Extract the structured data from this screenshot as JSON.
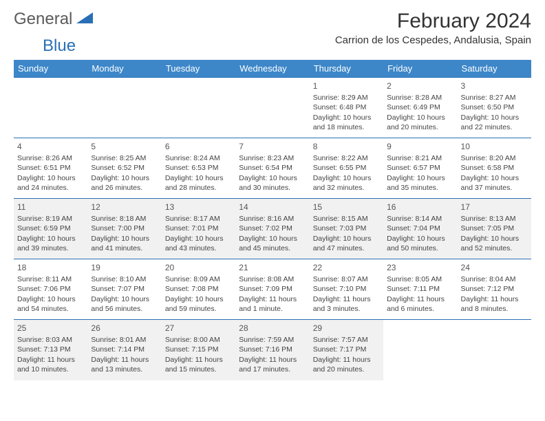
{
  "logo": {
    "text1": "General",
    "text2": "Blue"
  },
  "title": "February 2024",
  "location": "Carrion de los Cespedes, Andalusia, Spain",
  "colors": {
    "header_bg": "#3d87c9",
    "header_text": "#ffffff",
    "row_border": "#2a6fb5",
    "alt_row_bg": "#f1f1f1",
    "logo_blue": "#2a6fb5",
    "logo_gray": "#5a5a5a"
  },
  "day_headers": [
    "Sunday",
    "Monday",
    "Tuesday",
    "Wednesday",
    "Thursday",
    "Friday",
    "Saturday"
  ],
  "weeks": [
    {
      "alt": false,
      "cells": [
        null,
        null,
        null,
        null,
        {
          "num": "1",
          "sunrise": "8:29 AM",
          "sunset": "6:48 PM",
          "daylight": "10 hours and 18 minutes."
        },
        {
          "num": "2",
          "sunrise": "8:28 AM",
          "sunset": "6:49 PM",
          "daylight": "10 hours and 20 minutes."
        },
        {
          "num": "3",
          "sunrise": "8:27 AM",
          "sunset": "6:50 PM",
          "daylight": "10 hours and 22 minutes."
        }
      ]
    },
    {
      "alt": false,
      "cells": [
        {
          "num": "4",
          "sunrise": "8:26 AM",
          "sunset": "6:51 PM",
          "daylight": "10 hours and 24 minutes."
        },
        {
          "num": "5",
          "sunrise": "8:25 AM",
          "sunset": "6:52 PM",
          "daylight": "10 hours and 26 minutes."
        },
        {
          "num": "6",
          "sunrise": "8:24 AM",
          "sunset": "6:53 PM",
          "daylight": "10 hours and 28 minutes."
        },
        {
          "num": "7",
          "sunrise": "8:23 AM",
          "sunset": "6:54 PM",
          "daylight": "10 hours and 30 minutes."
        },
        {
          "num": "8",
          "sunrise": "8:22 AM",
          "sunset": "6:55 PM",
          "daylight": "10 hours and 32 minutes."
        },
        {
          "num": "9",
          "sunrise": "8:21 AM",
          "sunset": "6:57 PM",
          "daylight": "10 hours and 35 minutes."
        },
        {
          "num": "10",
          "sunrise": "8:20 AM",
          "sunset": "6:58 PM",
          "daylight": "10 hours and 37 minutes."
        }
      ]
    },
    {
      "alt": true,
      "cells": [
        {
          "num": "11",
          "sunrise": "8:19 AM",
          "sunset": "6:59 PM",
          "daylight": "10 hours and 39 minutes."
        },
        {
          "num": "12",
          "sunrise": "8:18 AM",
          "sunset": "7:00 PM",
          "daylight": "10 hours and 41 minutes."
        },
        {
          "num": "13",
          "sunrise": "8:17 AM",
          "sunset": "7:01 PM",
          "daylight": "10 hours and 43 minutes."
        },
        {
          "num": "14",
          "sunrise": "8:16 AM",
          "sunset": "7:02 PM",
          "daylight": "10 hours and 45 minutes."
        },
        {
          "num": "15",
          "sunrise": "8:15 AM",
          "sunset": "7:03 PM",
          "daylight": "10 hours and 47 minutes."
        },
        {
          "num": "16",
          "sunrise": "8:14 AM",
          "sunset": "7:04 PM",
          "daylight": "10 hours and 50 minutes."
        },
        {
          "num": "17",
          "sunrise": "8:13 AM",
          "sunset": "7:05 PM",
          "daylight": "10 hours and 52 minutes."
        }
      ]
    },
    {
      "alt": false,
      "cells": [
        {
          "num": "18",
          "sunrise": "8:11 AM",
          "sunset": "7:06 PM",
          "daylight": "10 hours and 54 minutes."
        },
        {
          "num": "19",
          "sunrise": "8:10 AM",
          "sunset": "7:07 PM",
          "daylight": "10 hours and 56 minutes."
        },
        {
          "num": "20",
          "sunrise": "8:09 AM",
          "sunset": "7:08 PM",
          "daylight": "10 hours and 59 minutes."
        },
        {
          "num": "21",
          "sunrise": "8:08 AM",
          "sunset": "7:09 PM",
          "daylight": "11 hours and 1 minute."
        },
        {
          "num": "22",
          "sunrise": "8:07 AM",
          "sunset": "7:10 PM",
          "daylight": "11 hours and 3 minutes."
        },
        {
          "num": "23",
          "sunrise": "8:05 AM",
          "sunset": "7:11 PM",
          "daylight": "11 hours and 6 minutes."
        },
        {
          "num": "24",
          "sunrise": "8:04 AM",
          "sunset": "7:12 PM",
          "daylight": "11 hours and 8 minutes."
        }
      ]
    },
    {
      "alt": true,
      "cells": [
        {
          "num": "25",
          "sunrise": "8:03 AM",
          "sunset": "7:13 PM",
          "daylight": "11 hours and 10 minutes."
        },
        {
          "num": "26",
          "sunrise": "8:01 AM",
          "sunset": "7:14 PM",
          "daylight": "11 hours and 13 minutes."
        },
        {
          "num": "27",
          "sunrise": "8:00 AM",
          "sunset": "7:15 PM",
          "daylight": "11 hours and 15 minutes."
        },
        {
          "num": "28",
          "sunrise": "7:59 AM",
          "sunset": "7:16 PM",
          "daylight": "11 hours and 17 minutes."
        },
        {
          "num": "29",
          "sunrise": "7:57 AM",
          "sunset": "7:17 PM",
          "daylight": "11 hours and 20 minutes."
        },
        null,
        null
      ]
    }
  ],
  "labels": {
    "sunrise": "Sunrise:",
    "sunset": "Sunset:",
    "daylight": "Daylight:"
  }
}
